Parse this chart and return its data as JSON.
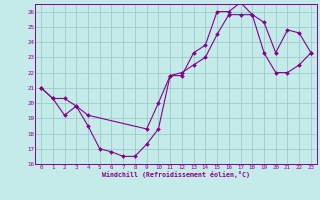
{
  "xlabel": "Windchill (Refroidissement éolien,°C)",
  "background_color": "#c5eaea",
  "line_color": "#880088",
  "grid_color": "#99cccc",
  "xlim": [
    -0.5,
    23.5
  ],
  "ylim": [
    16,
    26.5
  ],
  "xticks": [
    0,
    1,
    2,
    3,
    4,
    5,
    6,
    7,
    8,
    9,
    10,
    11,
    12,
    13,
    14,
    15,
    16,
    17,
    18,
    19,
    20,
    21,
    22,
    23
  ],
  "yticks": [
    16,
    17,
    18,
    19,
    20,
    21,
    22,
    23,
    24,
    25,
    26
  ],
  "line1_x": [
    0,
    1,
    2,
    3,
    4,
    5,
    6,
    7,
    8,
    9,
    10,
    11,
    12,
    13,
    14,
    15,
    16,
    17,
    18,
    19,
    20,
    21,
    22,
    23
  ],
  "line1_y": [
    21.0,
    20.3,
    19.2,
    19.8,
    18.5,
    17.0,
    16.8,
    16.5,
    16.5,
    17.3,
    18.3,
    21.8,
    21.8,
    23.3,
    23.8,
    26.0,
    26.0,
    26.6,
    25.8,
    25.3,
    23.3,
    24.8,
    24.6,
    23.3
  ],
  "line2_x": [
    0,
    1,
    2,
    3,
    4,
    9,
    10,
    11,
    12,
    13,
    14,
    15,
    16,
    17,
    18,
    19,
    20,
    21,
    22,
    23
  ],
  "line2_y": [
    21.0,
    20.3,
    20.3,
    19.8,
    19.2,
    18.3,
    20.0,
    21.8,
    22.0,
    22.5,
    23.0,
    24.5,
    25.8,
    25.8,
    25.8,
    23.3,
    22.0,
    22.0,
    22.5,
    23.3
  ]
}
